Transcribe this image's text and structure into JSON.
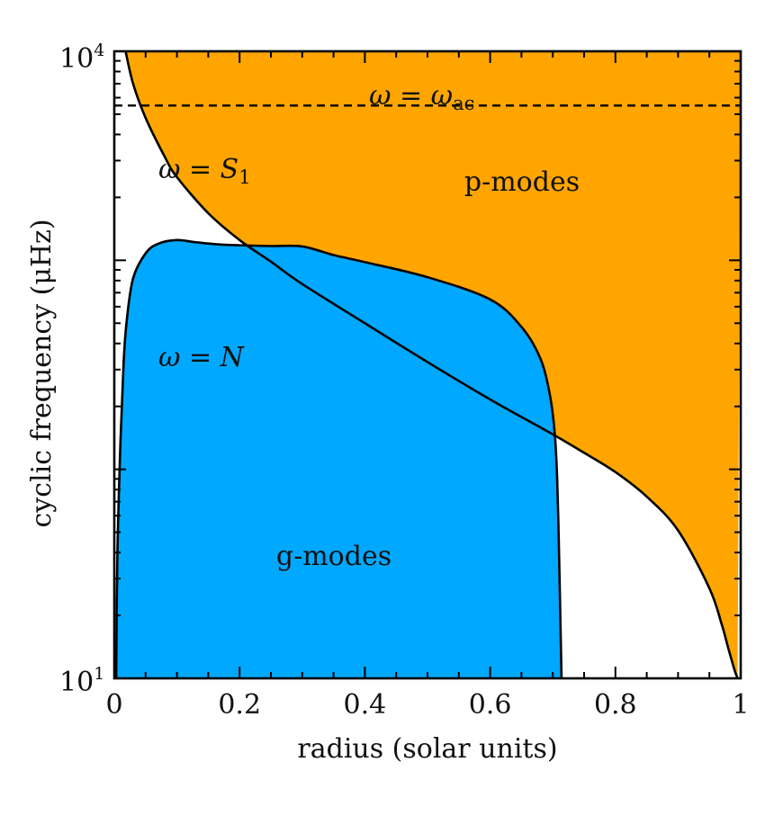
{
  "chart_data": {
    "type": "area",
    "xlabel": "radius (solar units)",
    "ylabel": "cyclic frequency (μHz)",
    "xlim": [
      0,
      1
    ],
    "ylim": [
      10,
      10000
    ],
    "yscale": "log",
    "x_ticks": [
      0,
      0.2,
      0.4,
      0.6,
      0.8,
      1
    ],
    "x_tick_labels": [
      "0",
      "0.2",
      "0.4",
      "0.6",
      "0.8",
      "1"
    ],
    "y_tick_labels": [
      {
        "value": 10,
        "base": "10",
        "exp": "1"
      },
      {
        "value": 10000,
        "base": "10",
        "exp": "4"
      }
    ],
    "y_minor_ticks": [
      100,
      1000
    ],
    "colors": {
      "p_modes": "#FFA500",
      "g_modes": "#00A8FF",
      "line": "#000000"
    },
    "regions": [
      {
        "label": "p-modes",
        "color": "#FFA500"
      },
      {
        "label": "g-modes",
        "color": "#00A8FF"
      }
    ],
    "curves": {
      "S1": {
        "label_main": "ω = S",
        "label_sub": "1",
        "x": [
          0.018,
          0.03,
          0.05,
          0.08,
          0.1,
          0.15,
          0.2,
          0.25,
          0.3,
          0.4,
          0.5,
          0.6,
          0.7,
          0.75,
          0.8,
          0.85,
          0.9,
          0.95,
          0.97,
          0.98,
          0.99,
          0.995
        ],
        "y": [
          10000,
          7000,
          4800,
          3150,
          2500,
          1680,
          1250,
          985,
          770,
          500,
          326,
          216,
          147,
          120,
          97,
          74,
          51,
          27,
          18,
          14,
          11,
          10
        ]
      },
      "N": {
        "label_main": "ω = N",
        "x": [
          0.003,
          0.005,
          0.01,
          0.015,
          0.02,
          0.03,
          0.05,
          0.07,
          0.1,
          0.13,
          0.17,
          0.2,
          0.25,
          0.3,
          0.35,
          0.4,
          0.5,
          0.6,
          0.65,
          0.68,
          0.695,
          0.703,
          0.707,
          0.71,
          0.712,
          0.714
        ],
        "y": [
          10,
          40,
          140,
          330,
          520,
          820,
          1080,
          1200,
          1250,
          1220,
          1190,
          1180,
          1170,
          1165,
          1060,
          980,
          830,
          650,
          480,
          340,
          230,
          150,
          90,
          40,
          20,
          10
        ]
      },
      "acoustic_cutoff": {
        "label_main": "ω = ω",
        "label_sub": "ac",
        "value": 5500
      }
    }
  }
}
